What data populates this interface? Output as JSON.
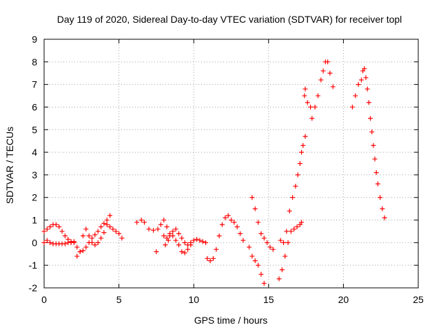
{
  "chart_data": {
    "type": "scatter",
    "title": "Day 119 of 2020, Sidereal Day-to-day VTEC variation (SDTVAR) for receiver topl",
    "xlabel": "GPS time / hours",
    "ylabel": "SDTVAR / TECUs",
    "xlim": [
      0,
      25
    ],
    "ylim": [
      -2,
      9
    ],
    "xticks": [
      "0",
      "5",
      "10",
      "15",
      "20",
      "25"
    ],
    "yticks": [
      "-2",
      "-1",
      "0",
      "1",
      "2",
      "3",
      "4",
      "5",
      "6",
      "7",
      "8",
      "9"
    ],
    "grid": true,
    "marker": "plus",
    "color": "#ff0000",
    "series": [
      {
        "values": [
          [
            0.0,
            0.5
          ],
          [
            0.2,
            0.6
          ],
          [
            0.4,
            0.7
          ],
          [
            0.6,
            0.8
          ],
          [
            0.8,
            0.8
          ],
          [
            1.0,
            0.7
          ],
          [
            1.2,
            0.5
          ],
          [
            1.4,
            0.3
          ],
          [
            1.6,
            0.15
          ],
          [
            1.8,
            0.05
          ],
          [
            2.0,
            0.0
          ],
          [
            2.2,
            -0.2
          ],
          [
            2.4,
            -0.4
          ],
          [
            2.6,
            -0.35
          ],
          [
            2.8,
            -0.2
          ],
          [
            3.0,
            0.0
          ],
          [
            3.2,
            0.2
          ],
          [
            3.4,
            0.35
          ],
          [
            3.6,
            0.5
          ],
          [
            3.8,
            0.7
          ],
          [
            4.0,
            0.85
          ],
          [
            4.2,
            1.0
          ],
          [
            4.4,
            0.7
          ],
          [
            4.6,
            0.6
          ],
          [
            4.8,
            0.5
          ],
          [
            5.0,
            0.4
          ],
          [
            5.2,
            0.2
          ],
          [
            0.0,
            0.0
          ],
          [
            0.2,
            0.1
          ],
          [
            0.4,
            0.0
          ],
          [
            0.6,
            -0.05
          ],
          [
            0.8,
            -0.05
          ],
          [
            1.0,
            -0.05
          ],
          [
            1.2,
            -0.05
          ],
          [
            1.4,
            -0.05
          ],
          [
            1.6,
            0.0
          ],
          [
            1.8,
            0.0
          ],
          [
            2.0,
            0.05
          ],
          [
            2.2,
            -0.6
          ],
          [
            2.4,
            -0.4
          ],
          [
            2.6,
            0.3
          ],
          [
            2.8,
            0.6
          ],
          [
            3.0,
            0.3
          ],
          [
            3.2,
            0.0
          ],
          [
            3.4,
            -0.1
          ],
          [
            3.6,
            0.0
          ],
          [
            3.8,
            0.2
          ],
          [
            4.0,
            0.45
          ],
          [
            4.2,
            0.8
          ],
          [
            4.4,
            1.2
          ],
          [
            6.2,
            0.9
          ],
          [
            6.5,
            1.0
          ],
          [
            6.7,
            0.9
          ],
          [
            7.0,
            0.6
          ],
          [
            7.3,
            0.55
          ],
          [
            7.5,
            -0.4
          ],
          [
            7.6,
            0.6
          ],
          [
            7.8,
            0.8
          ],
          [
            8.0,
            1.0
          ],
          [
            8.2,
            0.7
          ],
          [
            8.4,
            0.4
          ],
          [
            8.6,
            0.3
          ],
          [
            8.8,
            0.1
          ],
          [
            9.0,
            -0.1
          ],
          [
            9.2,
            -0.4
          ],
          [
            9.4,
            -0.45
          ],
          [
            9.6,
            -0.3
          ],
          [
            9.8,
            -0.1
          ],
          [
            10.0,
            0.1
          ],
          [
            10.2,
            0.15
          ],
          [
            10.4,
            0.1
          ],
          [
            10.6,
            0.05
          ],
          [
            10.8,
            0.0
          ],
          [
            8.0,
            0.3
          ],
          [
            8.2,
            0.2
          ],
          [
            8.4,
            0.3
          ],
          [
            8.6,
            0.5
          ],
          [
            8.8,
            0.6
          ],
          [
            9.0,
            0.4
          ],
          [
            9.2,
            0.2
          ],
          [
            9.4,
            0.0
          ],
          [
            9.6,
            -0.1
          ],
          [
            9.8,
            0.0
          ],
          [
            8.1,
            -0.1
          ],
          [
            8.3,
            0.1
          ],
          [
            10.9,
            -0.7
          ],
          [
            11.1,
            -0.8
          ],
          [
            11.3,
            -0.7
          ],
          [
            11.5,
            -0.3
          ],
          [
            11.7,
            0.3
          ],
          [
            11.9,
            0.8
          ],
          [
            12.1,
            1.1
          ],
          [
            12.3,
            1.2
          ],
          [
            12.5,
            1.0
          ],
          [
            12.7,
            0.9
          ],
          [
            12.9,
            0.7
          ],
          [
            13.1,
            0.4
          ],
          [
            13.3,
            0.1
          ],
          [
            13.7,
            -0.2
          ],
          [
            13.9,
            -0.6
          ],
          [
            14.1,
            -0.8
          ],
          [
            14.3,
            -1.0
          ],
          [
            14.5,
            -1.4
          ],
          [
            14.7,
            -1.8
          ],
          [
            13.9,
            2.0
          ],
          [
            14.1,
            1.5
          ],
          [
            14.3,
            0.9
          ],
          [
            14.5,
            0.4
          ],
          [
            14.7,
            0.2
          ],
          [
            14.9,
            0.0
          ],
          [
            15.1,
            -0.2
          ],
          [
            15.3,
            -0.3
          ],
          [
            15.7,
            -1.6
          ],
          [
            15.9,
            -1.2
          ],
          [
            16.1,
            -0.6
          ],
          [
            16.3,
            0.0
          ],
          [
            16.5,
            0.5
          ],
          [
            16.7,
            0.6
          ],
          [
            16.9,
            0.7
          ],
          [
            17.1,
            0.8
          ],
          [
            17.2,
            0.9
          ],
          [
            15.8,
            0.1
          ],
          [
            16.0,
            0.0
          ],
          [
            16.2,
            0.5
          ],
          [
            16.4,
            1.4
          ],
          [
            16.6,
            2.0
          ],
          [
            16.8,
            2.5
          ],
          [
            16.95,
            3.0
          ],
          [
            17.1,
            3.5
          ],
          [
            17.2,
            4.0
          ],
          [
            17.3,
            4.3
          ],
          [
            17.45,
            4.7
          ],
          [
            17.4,
            6.5
          ],
          [
            17.6,
            6.2
          ],
          [
            17.8,
            6.0
          ],
          [
            17.9,
            5.5
          ],
          [
            18.1,
            6.0
          ],
          [
            18.3,
            6.5
          ],
          [
            18.5,
            7.2
          ],
          [
            18.65,
            7.6
          ],
          [
            18.8,
            8.0
          ],
          [
            18.95,
            8.0
          ],
          [
            19.1,
            7.5
          ],
          [
            19.3,
            6.9
          ],
          [
            17.45,
            6.8
          ],
          [
            20.6,
            6.0
          ],
          [
            20.8,
            6.5
          ],
          [
            21.0,
            7.0
          ],
          [
            21.2,
            7.2
          ],
          [
            21.3,
            7.6
          ],
          [
            21.4,
            7.7
          ],
          [
            21.5,
            7.3
          ],
          [
            21.6,
            6.8
          ],
          [
            21.7,
            6.2
          ],
          [
            21.8,
            5.5
          ],
          [
            21.9,
            4.9
          ],
          [
            22.0,
            4.3
          ],
          [
            22.1,
            3.7
          ],
          [
            22.2,
            3.1
          ],
          [
            22.3,
            2.6
          ],
          [
            22.45,
            2.0
          ],
          [
            22.6,
            1.5
          ],
          [
            22.75,
            1.1
          ]
        ]
      }
    ]
  }
}
